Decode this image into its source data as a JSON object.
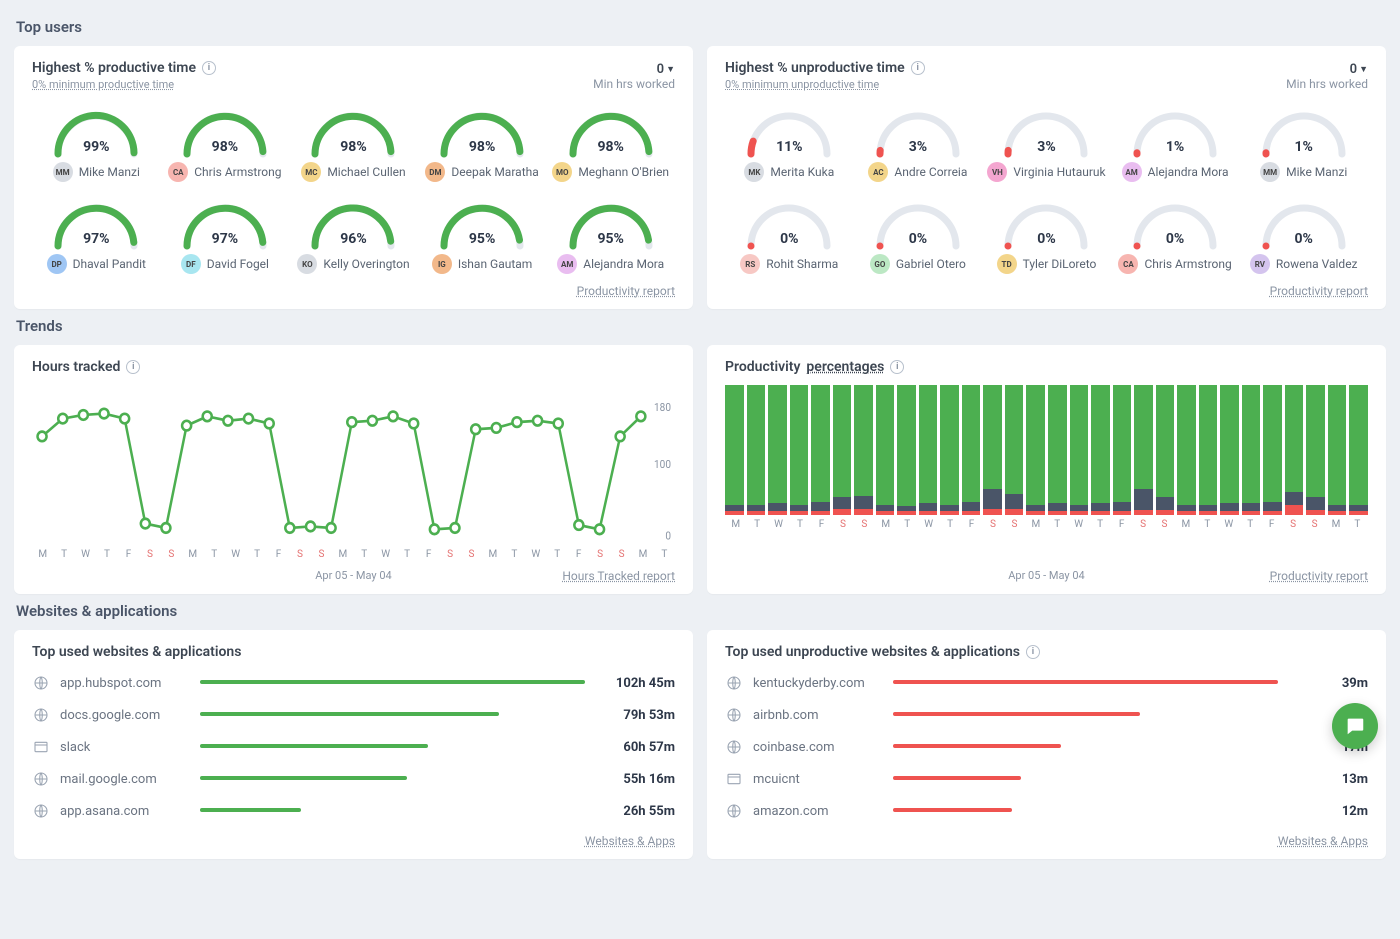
{
  "colors": {
    "green": "#4caf50",
    "red": "#ef5350",
    "track": "#e3e7ed",
    "slate": "#4a5568",
    "grid": "#edf0f4",
    "weekend_label": "#e57373"
  },
  "sections": {
    "top_users": "Top users",
    "trends": "Trends",
    "sites": "Websites & applications"
  },
  "productive": {
    "title": "Highest % productive time",
    "min_link": "0% minimum productive time",
    "zero": "0",
    "min_hrs": "Min hrs worked",
    "footer": "Productivity report",
    "arc_color": "#4caf50",
    "track_color": "#e3e7ed",
    "users": [
      {
        "pct": "99%",
        "val": 99,
        "name": "Mike Manzi",
        "init": "MM",
        "avatar_bg": "#d8dce2"
      },
      {
        "pct": "98%",
        "val": 98,
        "name": "Chris Armstrong",
        "init": "CA",
        "avatar_bg": "#f7b5b0"
      },
      {
        "pct": "98%",
        "val": 98,
        "name": "Michael Cullen",
        "init": "MC",
        "avatar_bg": "#f3d58a"
      },
      {
        "pct": "98%",
        "val": 98,
        "name": "Deepak Maratha",
        "init": "DM",
        "avatar_bg": "#f2b88a"
      },
      {
        "pct": "98%",
        "val": 98,
        "name": "Meghann O'Brien",
        "init": "MO",
        "avatar_bg": "#f3d58a"
      },
      {
        "pct": "97%",
        "val": 97,
        "name": "Dhaval Pandit",
        "init": "DP",
        "avatar_bg": "#9fc6f4"
      },
      {
        "pct": "97%",
        "val": 97,
        "name": "David Fogel",
        "init": "DF",
        "avatar_bg": "#a8e6f0"
      },
      {
        "pct": "96%",
        "val": 96,
        "name": "Kelly Overington",
        "init": "KO",
        "avatar_bg": "#d8dce2"
      },
      {
        "pct": "95%",
        "val": 95,
        "name": "Ishan Gautam",
        "init": "IG",
        "avatar_bg": "#f2b88a"
      },
      {
        "pct": "95%",
        "val": 95,
        "name": "Alejandra Mora",
        "init": "AM",
        "avatar_bg": "#e9bdf0"
      }
    ]
  },
  "unproductive": {
    "title": "Highest % unproductive time",
    "min_link": "0% minimum unproductive time",
    "zero": "0",
    "min_hrs": "Min hrs worked",
    "footer": "Productivity report",
    "arc_color": "#ef5350",
    "track_color": "#e3e7ed",
    "users": [
      {
        "pct": "11%",
        "val": 11,
        "name": "Merita Kuka",
        "init": "MK",
        "avatar_bg": "#d8dce2"
      },
      {
        "pct": "3%",
        "val": 3,
        "name": "Andre Correia",
        "init": "AC",
        "avatar_bg": "#f3d58a"
      },
      {
        "pct": "3%",
        "val": 3,
        "name": "Virginia Hutauruk",
        "init": "VH",
        "avatar_bg": "#f4a6d0"
      },
      {
        "pct": "1%",
        "val": 1,
        "name": "Alejandra Mora",
        "init": "AM",
        "avatar_bg": "#e9bdf0"
      },
      {
        "pct": "1%",
        "val": 1,
        "name": "Mike Manzi",
        "init": "MM",
        "avatar_bg": "#d8dce2"
      },
      {
        "pct": "0%",
        "val": 0,
        "name": "Rohit Sharma",
        "init": "RS",
        "avatar_bg": "#f7c8c4"
      },
      {
        "pct": "0%",
        "val": 0,
        "name": "Gabriel Otero",
        "init": "GO",
        "avatar_bg": "#bce8c4"
      },
      {
        "pct": "0%",
        "val": 0,
        "name": "Tyler DiLoreto",
        "init": "TD",
        "avatar_bg": "#f3d58a"
      },
      {
        "pct": "0%",
        "val": 0,
        "name": "Chris Armstrong",
        "init": "CA",
        "avatar_bg": "#f7b5b0"
      },
      {
        "pct": "0%",
        "val": 0,
        "name": "Rowena Valdez",
        "init": "RV",
        "avatar_bg": "#d4c4ee"
      }
    ]
  },
  "hours_tracked": {
    "title": "Hours tracked",
    "footer": "Hours Tracked report",
    "date_range": "Apr 05 - May 04",
    "line_color": "#4caf50",
    "point_fill": "#ffffff",
    "grid_color": "#edf0f4",
    "ylim": [
      0,
      200
    ],
    "yticks": [
      0,
      100,
      180
    ],
    "days": [
      "M",
      "T",
      "W",
      "T",
      "F",
      "S",
      "S",
      "M",
      "T",
      "W",
      "T",
      "F",
      "S",
      "S",
      "M",
      "T",
      "W",
      "T",
      "F",
      "S",
      "S",
      "M",
      "T",
      "W",
      "T",
      "F",
      "S",
      "S",
      "M",
      "T"
    ],
    "weekend_idx": [
      5,
      6,
      12,
      13,
      19,
      20,
      26,
      27
    ],
    "values": [
      140,
      165,
      170,
      172,
      165,
      18,
      12,
      155,
      168,
      162,
      165,
      158,
      12,
      14,
      12,
      160,
      162,
      168,
      158,
      10,
      12,
      150,
      152,
      160,
      162,
      158,
      16,
      10,
      140,
      168
    ]
  },
  "prod_pct": {
    "title_a": "Productivity ",
    "title_b": "percentages",
    "footer": "Productivity report",
    "date_range": "Apr 05 - May 04",
    "colors": {
      "productive": "#4caf50",
      "neutral": "#4a5568",
      "unproductive": "#ef5350",
      "bg": "#ffffff"
    },
    "days": [
      "M",
      "T",
      "W",
      "T",
      "F",
      "S",
      "S",
      "M",
      "T",
      "W",
      "T",
      "F",
      "S",
      "S",
      "M",
      "T",
      "W",
      "T",
      "F",
      "S",
      "S",
      "M",
      "T",
      "W",
      "T",
      "F",
      "S",
      "S",
      "M",
      "T"
    ],
    "weekend_idx": [
      5,
      6,
      12,
      13,
      19,
      20,
      26,
      27
    ],
    "stacks": [
      {
        "p": 92,
        "n": 5,
        "u": 3
      },
      {
        "p": 92,
        "n": 5,
        "u": 3
      },
      {
        "p": 91,
        "n": 6,
        "u": 3
      },
      {
        "p": 92,
        "n": 5,
        "u": 3
      },
      {
        "p": 90,
        "n": 7,
        "u": 3
      },
      {
        "p": 86,
        "n": 9,
        "u": 5
      },
      {
        "p": 85,
        "n": 10,
        "u": 5
      },
      {
        "p": 92,
        "n": 5,
        "u": 3
      },
      {
        "p": 93,
        "n": 4,
        "u": 3
      },
      {
        "p": 91,
        "n": 6,
        "u": 3
      },
      {
        "p": 92,
        "n": 5,
        "u": 3
      },
      {
        "p": 90,
        "n": 7,
        "u": 3
      },
      {
        "p": 80,
        "n": 15,
        "u": 5
      },
      {
        "p": 84,
        "n": 11,
        "u": 5
      },
      {
        "p": 92,
        "n": 5,
        "u": 3
      },
      {
        "p": 91,
        "n": 6,
        "u": 3
      },
      {
        "p": 92,
        "n": 5,
        "u": 3
      },
      {
        "p": 91,
        "n": 6,
        "u": 3
      },
      {
        "p": 90,
        "n": 7,
        "u": 3
      },
      {
        "p": 80,
        "n": 16,
        "u": 4
      },
      {
        "p": 86,
        "n": 10,
        "u": 4
      },
      {
        "p": 92,
        "n": 5,
        "u": 3
      },
      {
        "p": 92,
        "n": 5,
        "u": 3
      },
      {
        "p": 91,
        "n": 6,
        "u": 3
      },
      {
        "p": 91,
        "n": 6,
        "u": 3
      },
      {
        "p": 90,
        "n": 7,
        "u": 3
      },
      {
        "p": 82,
        "n": 10,
        "u": 8
      },
      {
        "p": 86,
        "n": 10,
        "u": 4
      },
      {
        "p": 92,
        "n": 5,
        "u": 3
      },
      {
        "p": 92,
        "n": 5,
        "u": 3
      }
    ]
  },
  "top_sites": {
    "title": "Top used websites & applications",
    "footer": "Websites & Apps",
    "bar_color": "#4caf50",
    "max_minutes": 6165,
    "items": [
      {
        "name": "app.hubspot.com",
        "time": "102h 45m",
        "minutes": 6165,
        "icon": "globe"
      },
      {
        "name": "docs.google.com",
        "time": "79h 53m",
        "minutes": 4793,
        "icon": "globe"
      },
      {
        "name": "slack",
        "time": "60h 57m",
        "minutes": 3657,
        "icon": "window"
      },
      {
        "name": "mail.google.com",
        "time": "55h 16m",
        "minutes": 3316,
        "icon": "globe"
      },
      {
        "name": "app.asana.com",
        "time": "26h 55m",
        "minutes": 1615,
        "icon": "globe"
      }
    ]
  },
  "bad_sites": {
    "title": "Top used unproductive websites & applications",
    "footer": "Websites & Apps",
    "bar_color": "#ef5350",
    "max_minutes": 39,
    "items": [
      {
        "name": "kentuckyderby.com",
        "time": "39m",
        "minutes": 39,
        "icon": "globe"
      },
      {
        "name": "airbnb.com",
        "time": "25m",
        "minutes": 25,
        "icon": "globe"
      },
      {
        "name": "coinbase.com",
        "time": "17m",
        "minutes": 17,
        "icon": "globe"
      },
      {
        "name": "mcuicnt",
        "time": "13m",
        "minutes": 13,
        "icon": "window"
      },
      {
        "name": "amazon.com",
        "time": "12m",
        "minutes": 12,
        "icon": "globe"
      }
    ]
  }
}
